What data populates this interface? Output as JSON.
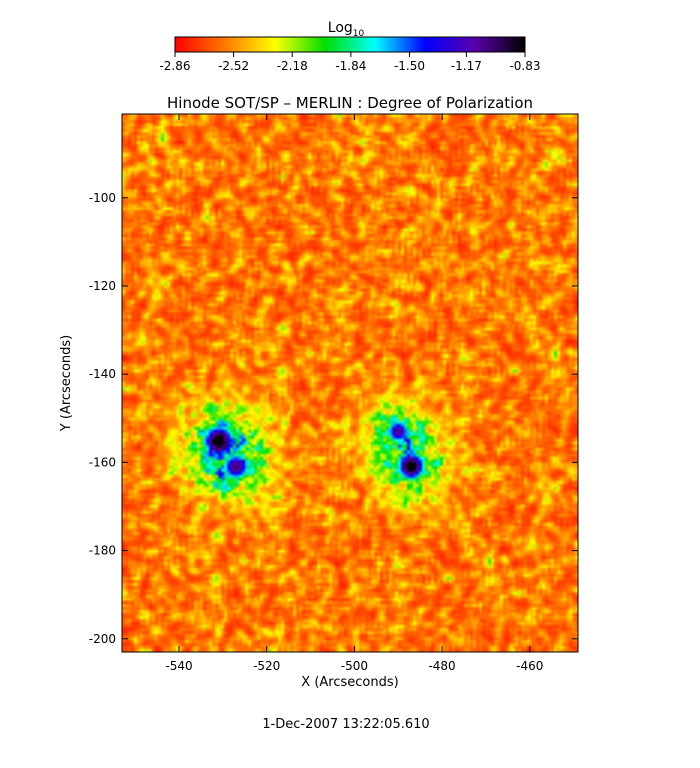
{
  "chart_data": {
    "type": "heatmap",
    "title": "Hinode SOT/SP – MERLIN : Degree of Polarization",
    "xlabel": "X (Arcseconds)",
    "ylabel": "Y (Arcseconds)",
    "xlim": [
      -553,
      -449
    ],
    "ylim": [
      -203,
      -81
    ],
    "x_ticks": [
      "-540",
      "-520",
      "-500",
      "-480",
      "-460"
    ],
    "y_ticks": [
      "-100",
      "-120",
      "-140",
      "-160",
      "-180",
      "-200"
    ],
    "colorbar": {
      "label_base": "Log",
      "label_sub": "10",
      "range": [
        -2.86,
        -0.83
      ],
      "tick_labels": [
        "-2.86",
        "-2.52",
        "-2.18",
        "-1.84",
        "-1.50",
        "-1.17",
        "-0.83"
      ],
      "colormap": [
        "#ff0000",
        "#ff7a00",
        "#ffff00",
        "#00e000",
        "#00ffff",
        "#0000ff",
        "#5a00aa",
        "#000000"
      ]
    },
    "timestamp": "1-Dec-2007 13:22:05.610",
    "features": [
      {
        "x": -531,
        "y": -155,
        "peak": -0.95,
        "sigma": 3.8
      },
      {
        "x": -527,
        "y": -161,
        "peak": -1.0,
        "sigma": 3.5
      },
      {
        "x": -487,
        "y": -161,
        "peak": -0.85,
        "sigma": 3.4
      },
      {
        "x": -490,
        "y": -153,
        "peak": -1.05,
        "sigma": 3.0
      }
    ]
  }
}
